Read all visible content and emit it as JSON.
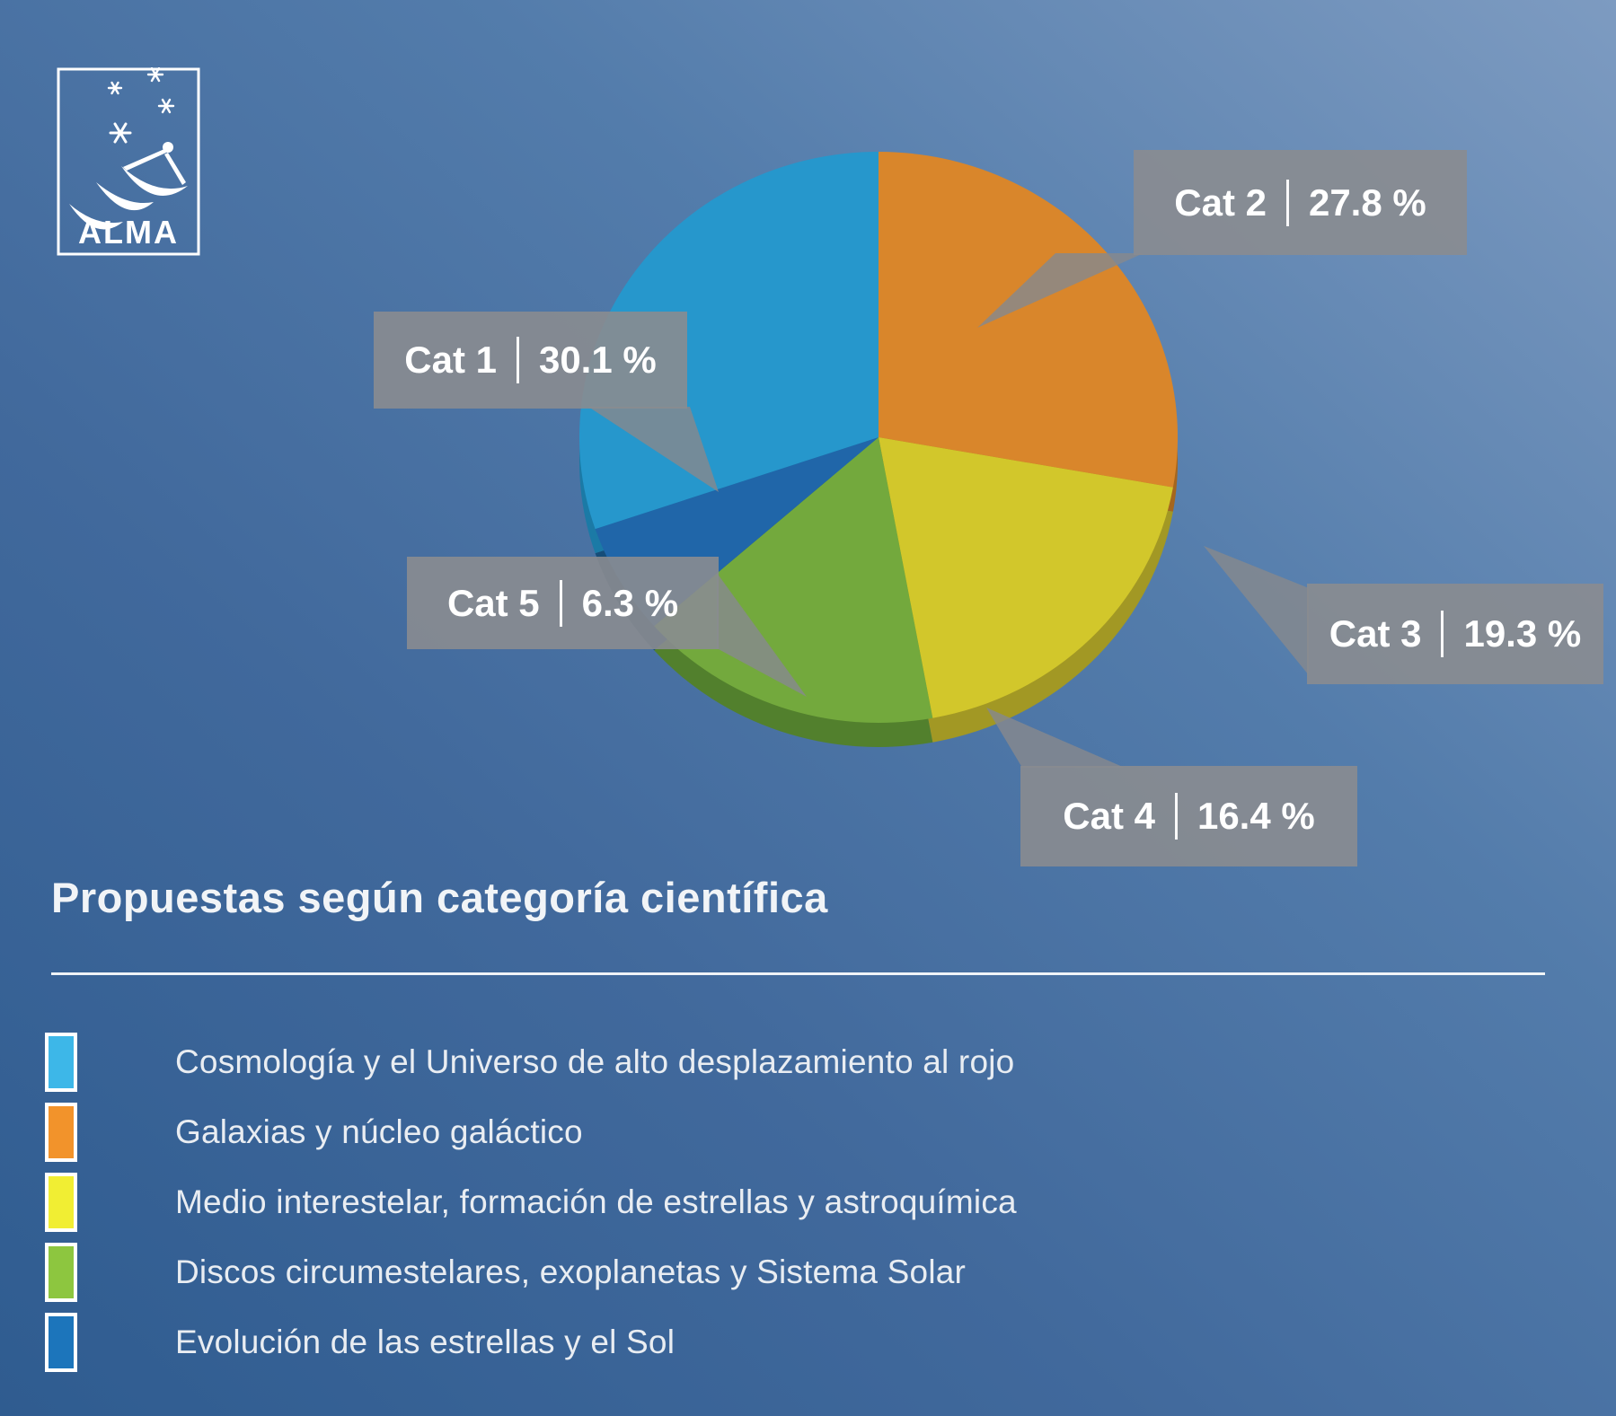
{
  "logo": {
    "text": "ALMA"
  },
  "title": "Propuestas según categoría científica",
  "chart_data": {
    "type": "pie",
    "title": "Propuestas según categoría científica",
    "start_angle_deg": 0,
    "direction": "clockwise",
    "total_pct": 99.9,
    "slices": [
      {
        "label": "Cat 2",
        "pct": 27.8,
        "display": "27.8 %",
        "category": "Galaxias y núcleo galáctico",
        "color": "#d9862b",
        "rim_color": "#a5661e"
      },
      {
        "label": "Cat 3",
        "pct": 19.3,
        "display": "19.3 %",
        "category": "Medio interestelar, formación de estrellas y astroquímica",
        "color": "#d2c72b",
        "rim_color": "#a29824"
      },
      {
        "label": "Cat 4",
        "pct": 16.4,
        "display": "16.4 %",
        "category": "Discos circumestelares, exoplanetas y Sistema Solar",
        "color": "#73a93d",
        "rim_color": "#52802d"
      },
      {
        "label": "Cat 5",
        "pct": 6.3,
        "display": "6.3 %",
        "category": "Evolución de las estrellas y el Sol",
        "color": "#2066a9",
        "rim_color": "#164d79"
      },
      {
        "label": "Cat 1",
        "pct": 30.1,
        "display": "30.1 %",
        "category": "Cosmología y el Universo de alto desplazamiento al rojo",
        "color": "#2697cc",
        "rim_color": "#1b7aa6"
      }
    ]
  },
  "legend": {
    "items": [
      {
        "label": "Cosmología y el Universo de alto desplazamiento al rojo",
        "color": "#3db7e8"
      },
      {
        "label": "Galaxias y núcleo galáctico",
        "color": "#f2932b"
      },
      {
        "label": "Medio interestelar, formación de estrellas y astroquímica",
        "color": "#f1ee33"
      },
      {
        "label": "Discos circumestelares, exoplanetas y Sistema Solar",
        "color": "#8dc63f"
      },
      {
        "label": "Evolución de las estrellas y el Sol",
        "color": "#1c75bb"
      }
    ]
  }
}
